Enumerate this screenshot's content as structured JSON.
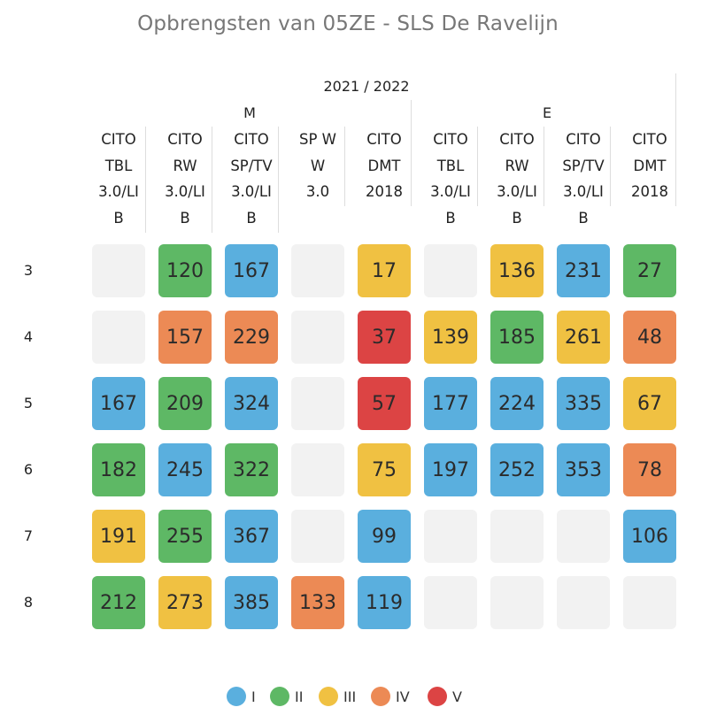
{
  "title": "Opbrengsten van 05ZE - SLS De Ravelijn",
  "year_header": "2021 / 2022",
  "groups": [
    "M",
    "E"
  ],
  "columns": [
    [
      "CITO",
      "TBL",
      "3.0/LI",
      "B"
    ],
    [
      "CITO",
      "RW",
      "3.0/LI",
      "B"
    ],
    [
      "CITO",
      "SP/TV",
      "3.0/LI",
      "B"
    ],
    [
      "SP W",
      "W",
      "3.0"
    ],
    [
      "CITO",
      "DMT",
      "2018"
    ],
    [
      "CITO",
      "TBL",
      "3.0/LI",
      "B"
    ],
    [
      "CITO",
      "RW",
      "3.0/LI",
      "B"
    ],
    [
      "CITO",
      "SP/TV",
      "3.0/LI",
      "B"
    ],
    [
      "CITO",
      "DMT",
      "2018"
    ]
  ],
  "colors": {
    "I": "#5aafde",
    "II": "#5eb865",
    "III": "#f0c142",
    "IV": "#ec8a55",
    "V": "#dc4444",
    "empty": "#f2f2f2"
  },
  "chart_data": {
    "type": "heatmap",
    "title": "Opbrengsten van 05ZE - SLS De Ravelijn",
    "rows": [
      "3",
      "4",
      "5",
      "6",
      "7",
      "8"
    ],
    "column_groups": [
      {
        "name": "M",
        "columns": [
          "CITO TBL 3.0/LI B",
          "CITO RW 3.0/LI B",
          "CITO SP/TV 3.0/LI B",
          "SP W W 3.0",
          "CITO DMT 2018"
        ]
      },
      {
        "name": "E",
        "columns": [
          "CITO TBL 3.0/LI B",
          "CITO RW 3.0/LI B",
          "CITO SP/TV 3.0/LI B",
          "CITO DMT 2018"
        ]
      }
    ],
    "cells": [
      [
        null,
        {
          "v": 120,
          "c": "II"
        },
        {
          "v": 167,
          "c": "I"
        },
        null,
        {
          "v": 17,
          "c": "III"
        },
        null,
        {
          "v": 136,
          "c": "III"
        },
        {
          "v": 231,
          "c": "I"
        },
        {
          "v": 27,
          "c": "II"
        }
      ],
      [
        null,
        {
          "v": 157,
          "c": "IV"
        },
        {
          "v": 229,
          "c": "IV"
        },
        null,
        {
          "v": 37,
          "c": "V"
        },
        {
          "v": 139,
          "c": "III"
        },
        {
          "v": 185,
          "c": "II"
        },
        {
          "v": 261,
          "c": "III"
        },
        {
          "v": 48,
          "c": "IV"
        }
      ],
      [
        {
          "v": 167,
          "c": "I"
        },
        {
          "v": 209,
          "c": "II"
        },
        {
          "v": 324,
          "c": "I"
        },
        null,
        {
          "v": 57,
          "c": "V"
        },
        {
          "v": 177,
          "c": "I"
        },
        {
          "v": 224,
          "c": "I"
        },
        {
          "v": 335,
          "c": "I"
        },
        {
          "v": 67,
          "c": "III"
        }
      ],
      [
        {
          "v": 182,
          "c": "II"
        },
        {
          "v": 245,
          "c": "I"
        },
        {
          "v": 322,
          "c": "II"
        },
        null,
        {
          "v": 75,
          "c": "III"
        },
        {
          "v": 197,
          "c": "I"
        },
        {
          "v": 252,
          "c": "I"
        },
        {
          "v": 353,
          "c": "I"
        },
        {
          "v": 78,
          "c": "IV"
        }
      ],
      [
        {
          "v": 191,
          "c": "III"
        },
        {
          "v": 255,
          "c": "II"
        },
        {
          "v": 367,
          "c": "I"
        },
        null,
        {
          "v": 99,
          "c": "I"
        },
        null,
        null,
        null,
        {
          "v": 106,
          "c": "I"
        }
      ],
      [
        {
          "v": 212,
          "c": "II"
        },
        {
          "v": 273,
          "c": "III"
        },
        {
          "v": 385,
          "c": "I"
        },
        {
          "v": 133,
          "c": "IV"
        },
        {
          "v": 119,
          "c": "I"
        },
        null,
        null,
        null,
        null
      ]
    ],
    "legend": [
      "I",
      "II",
      "III",
      "IV",
      "V"
    ],
    "legend_placement": "bottom-center"
  }
}
